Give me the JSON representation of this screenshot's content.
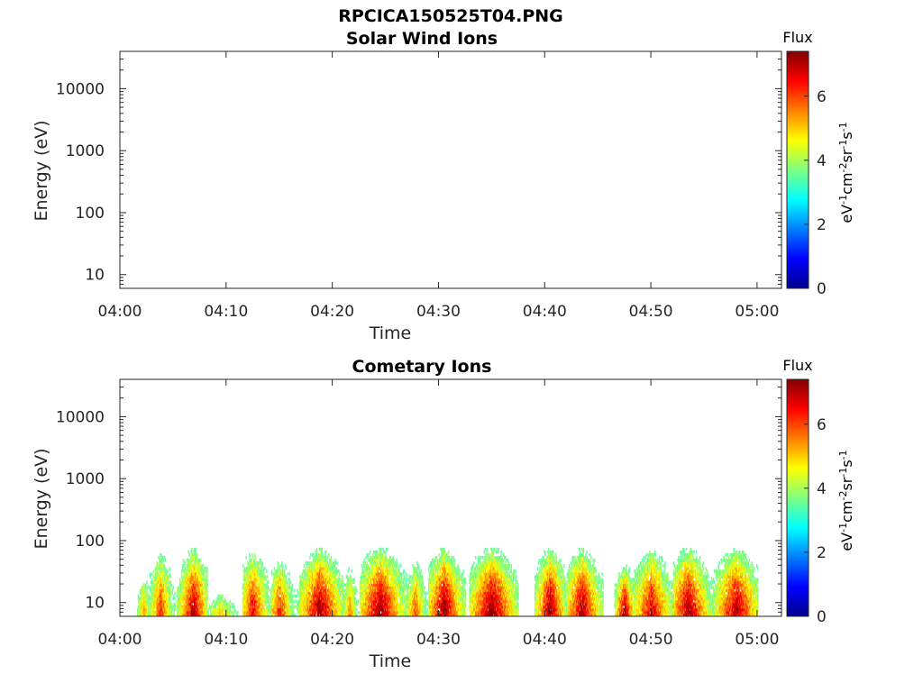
{
  "figure": {
    "title": "RPCICA150525T04.PNG"
  },
  "colorbar": {
    "label": "Flux",
    "ticks": [
      0,
      2,
      4,
      6
    ],
    "range": [
      0,
      7.4
    ],
    "colormap": "jet"
  },
  "chart_data": [
    {
      "type": "heatmap",
      "title": "Solar Wind Ions",
      "xlabel": "Time",
      "ylabel": "Energy (eV)",
      "x_ticks": [
        "04:00",
        "04:10",
        "04:20",
        "04:30",
        "04:40",
        "04:50",
        "05:00"
      ],
      "y_ticks": [
        10,
        100,
        1000,
        10000
      ],
      "y_scale": "log",
      "ylim": [
        6,
        40000
      ],
      "colorbar_label": "Flux",
      "colorbar_ticks": [
        0,
        2,
        4,
        6
      ],
      "cells": []
    },
    {
      "type": "heatmap",
      "title": "Cometary Ions",
      "xlabel": "Time",
      "ylabel": "Energy (eV)",
      "x_ticks": [
        "04:00",
        "04:10",
        "04:20",
        "04:30",
        "04:40",
        "04:50",
        "05:00"
      ],
      "y_ticks": [
        10,
        100,
        1000,
        10000
      ],
      "y_scale": "log",
      "ylim": [
        6,
        40000
      ],
      "colorbar_label": "Flux",
      "colorbar_ticks": [
        0,
        2,
        4,
        6
      ],
      "events": [
        {
          "start_min": 1.5,
          "end_min": 3.0,
          "peak_min": 2.2,
          "peak_flux": 5.6,
          "top_eV": 30
        },
        {
          "start_min": 2.8,
          "end_min": 5.2,
          "peak_min": 3.8,
          "peak_flux": 6.2,
          "top_eV": 75
        },
        {
          "start_min": 5.3,
          "end_min": 8.2,
          "peak_min": 6.9,
          "peak_flux": 7.2,
          "top_eV": 75
        },
        {
          "start_min": 8.2,
          "end_min": 11.5,
          "peak_min": 9.5,
          "peak_flux": 5.2,
          "top_eV": 16
        },
        {
          "start_min": 11.5,
          "end_min": 14.5,
          "peak_min": 12.5,
          "peak_flux": 6.6,
          "top_eV": 75
        },
        {
          "start_min": 14.2,
          "end_min": 16.8,
          "peak_min": 15.0,
          "peak_flux": 6.4,
          "top_eV": 55
        },
        {
          "start_min": 16.8,
          "end_min": 21.0,
          "peak_min": 18.8,
          "peak_flux": 7.3,
          "top_eV": 75
        },
        {
          "start_min": 20.8,
          "end_min": 22.5,
          "peak_min": 21.6,
          "peak_flux": 5.6,
          "top_eV": 45
        },
        {
          "start_min": 22.5,
          "end_min": 27.0,
          "peak_min": 24.5,
          "peak_flux": 7.4,
          "top_eV": 75
        },
        {
          "start_min": 26.8,
          "end_min": 29.0,
          "peak_min": 27.8,
          "peak_flux": 6.0,
          "top_eV": 55
        },
        {
          "start_min": 29.0,
          "end_min": 32.5,
          "peak_min": 30.5,
          "peak_flux": 7.4,
          "top_eV": 75
        },
        {
          "start_min": 32.8,
          "end_min": 37.5,
          "peak_min": 35.0,
          "peak_flux": 7.4,
          "top_eV": 75
        },
        {
          "start_min": 39.0,
          "end_min": 42.0,
          "peak_min": 40.5,
          "peak_flux": 7.3,
          "top_eV": 75
        },
        {
          "start_min": 42.0,
          "end_min": 45.5,
          "peak_min": 43.5,
          "peak_flux": 7.2,
          "top_eV": 75
        },
        {
          "start_min": 46.5,
          "end_min": 48.5,
          "peak_min": 47.5,
          "peak_flux": 7.2,
          "top_eV": 40
        },
        {
          "start_min": 48.0,
          "end_min": 52.0,
          "peak_min": 50.0,
          "peak_flux": 6.8,
          "top_eV": 75
        },
        {
          "start_min": 52.0,
          "end_min": 56.0,
          "peak_min": 53.5,
          "peak_flux": 7.3,
          "top_eV": 75
        },
        {
          "start_min": 55.5,
          "end_min": 60.0,
          "peak_min": 58.0,
          "peak_flux": 7.2,
          "top_eV": 75
        }
      ]
    }
  ]
}
